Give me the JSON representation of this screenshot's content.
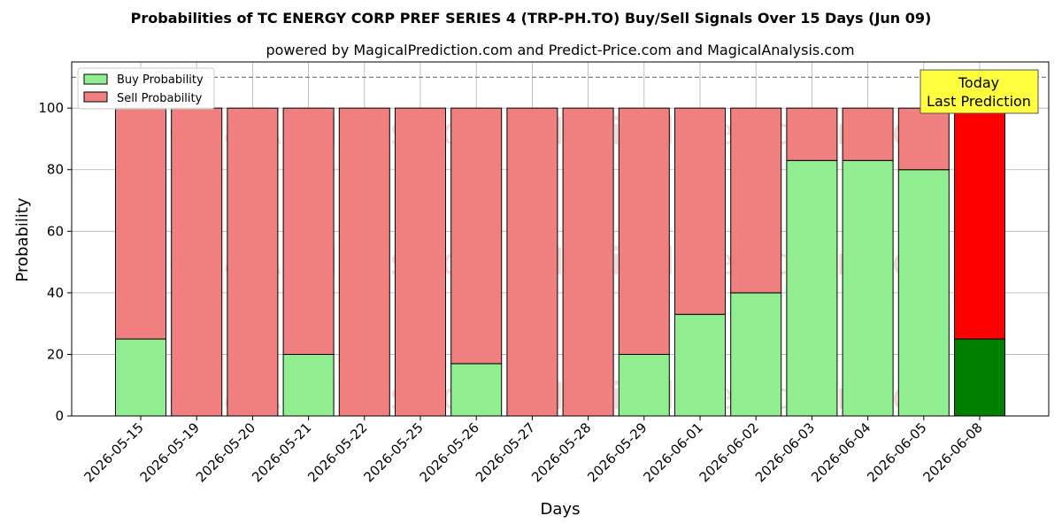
{
  "chart_data": {
    "type": "bar",
    "stacked": true,
    "title": "Probabilities of TC ENERGY CORP PREF SERIES 4 (TRP-PH.TO) Buy/Sell Signals Over 15 Days (Jun 09)",
    "subtitle": "powered by MagicalPrediction.com and Predict-Price.com and MagicalAnalysis.com",
    "xlabel": "Days",
    "ylabel": "Probability",
    "ylim": [
      0,
      115
    ],
    "yticks": [
      0,
      20,
      40,
      60,
      80,
      100
    ],
    "grid": true,
    "reference_line": 110,
    "categories": [
      "2026-05-15",
      "2026-05-19",
      "2026-05-20",
      "2026-05-21",
      "2026-05-22",
      "2026-05-25",
      "2026-05-26",
      "2026-05-27",
      "2026-05-28",
      "2026-05-29",
      "2026-06-01",
      "2026-06-02",
      "2026-06-03",
      "2026-06-04",
      "2026-06-05",
      "2026-06-08"
    ],
    "series": [
      {
        "name": "Buy Probability",
        "color": "#90ee90",
        "highlight_color": "#008000",
        "values": [
          25,
          0,
          0,
          20,
          0,
          0,
          17,
          0,
          0,
          20,
          33,
          40,
          83,
          83,
          80,
          25
        ]
      },
      {
        "name": "Sell Probability",
        "color": "#f08080",
        "highlight_color": "#ff0000",
        "values": [
          75,
          100,
          100,
          80,
          100,
          100,
          83,
          100,
          100,
          80,
          67,
          60,
          17,
          17,
          20,
          75
        ]
      }
    ],
    "highlight_index": 15,
    "legend_position": "top-left",
    "annotation": {
      "lines": [
        "Today",
        "Last Prediction"
      ],
      "background": "#ffff40"
    },
    "watermarks": [
      "MagicalAnalysis.com",
      "MagicalPrediction.com"
    ]
  }
}
